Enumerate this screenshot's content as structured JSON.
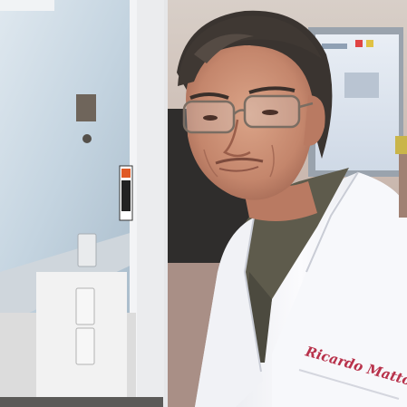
{
  "photo": {
    "kind": "portrait-photo",
    "subject": "scientist-in-lab-coat",
    "setting": "laboratory",
    "coat_embroidery": "Ricardo Mattos, Ph.D.",
    "colors": {
      "background_wall": "#bfa89c",
      "fume_hood_glass": "#c9d8e3",
      "lab_coat": "#f4f5f8",
      "shirt": "#5e5b4c",
      "hair": "#3a3430",
      "skin": "#c88a70",
      "embroidery_thread": "#b8324b"
    }
  }
}
